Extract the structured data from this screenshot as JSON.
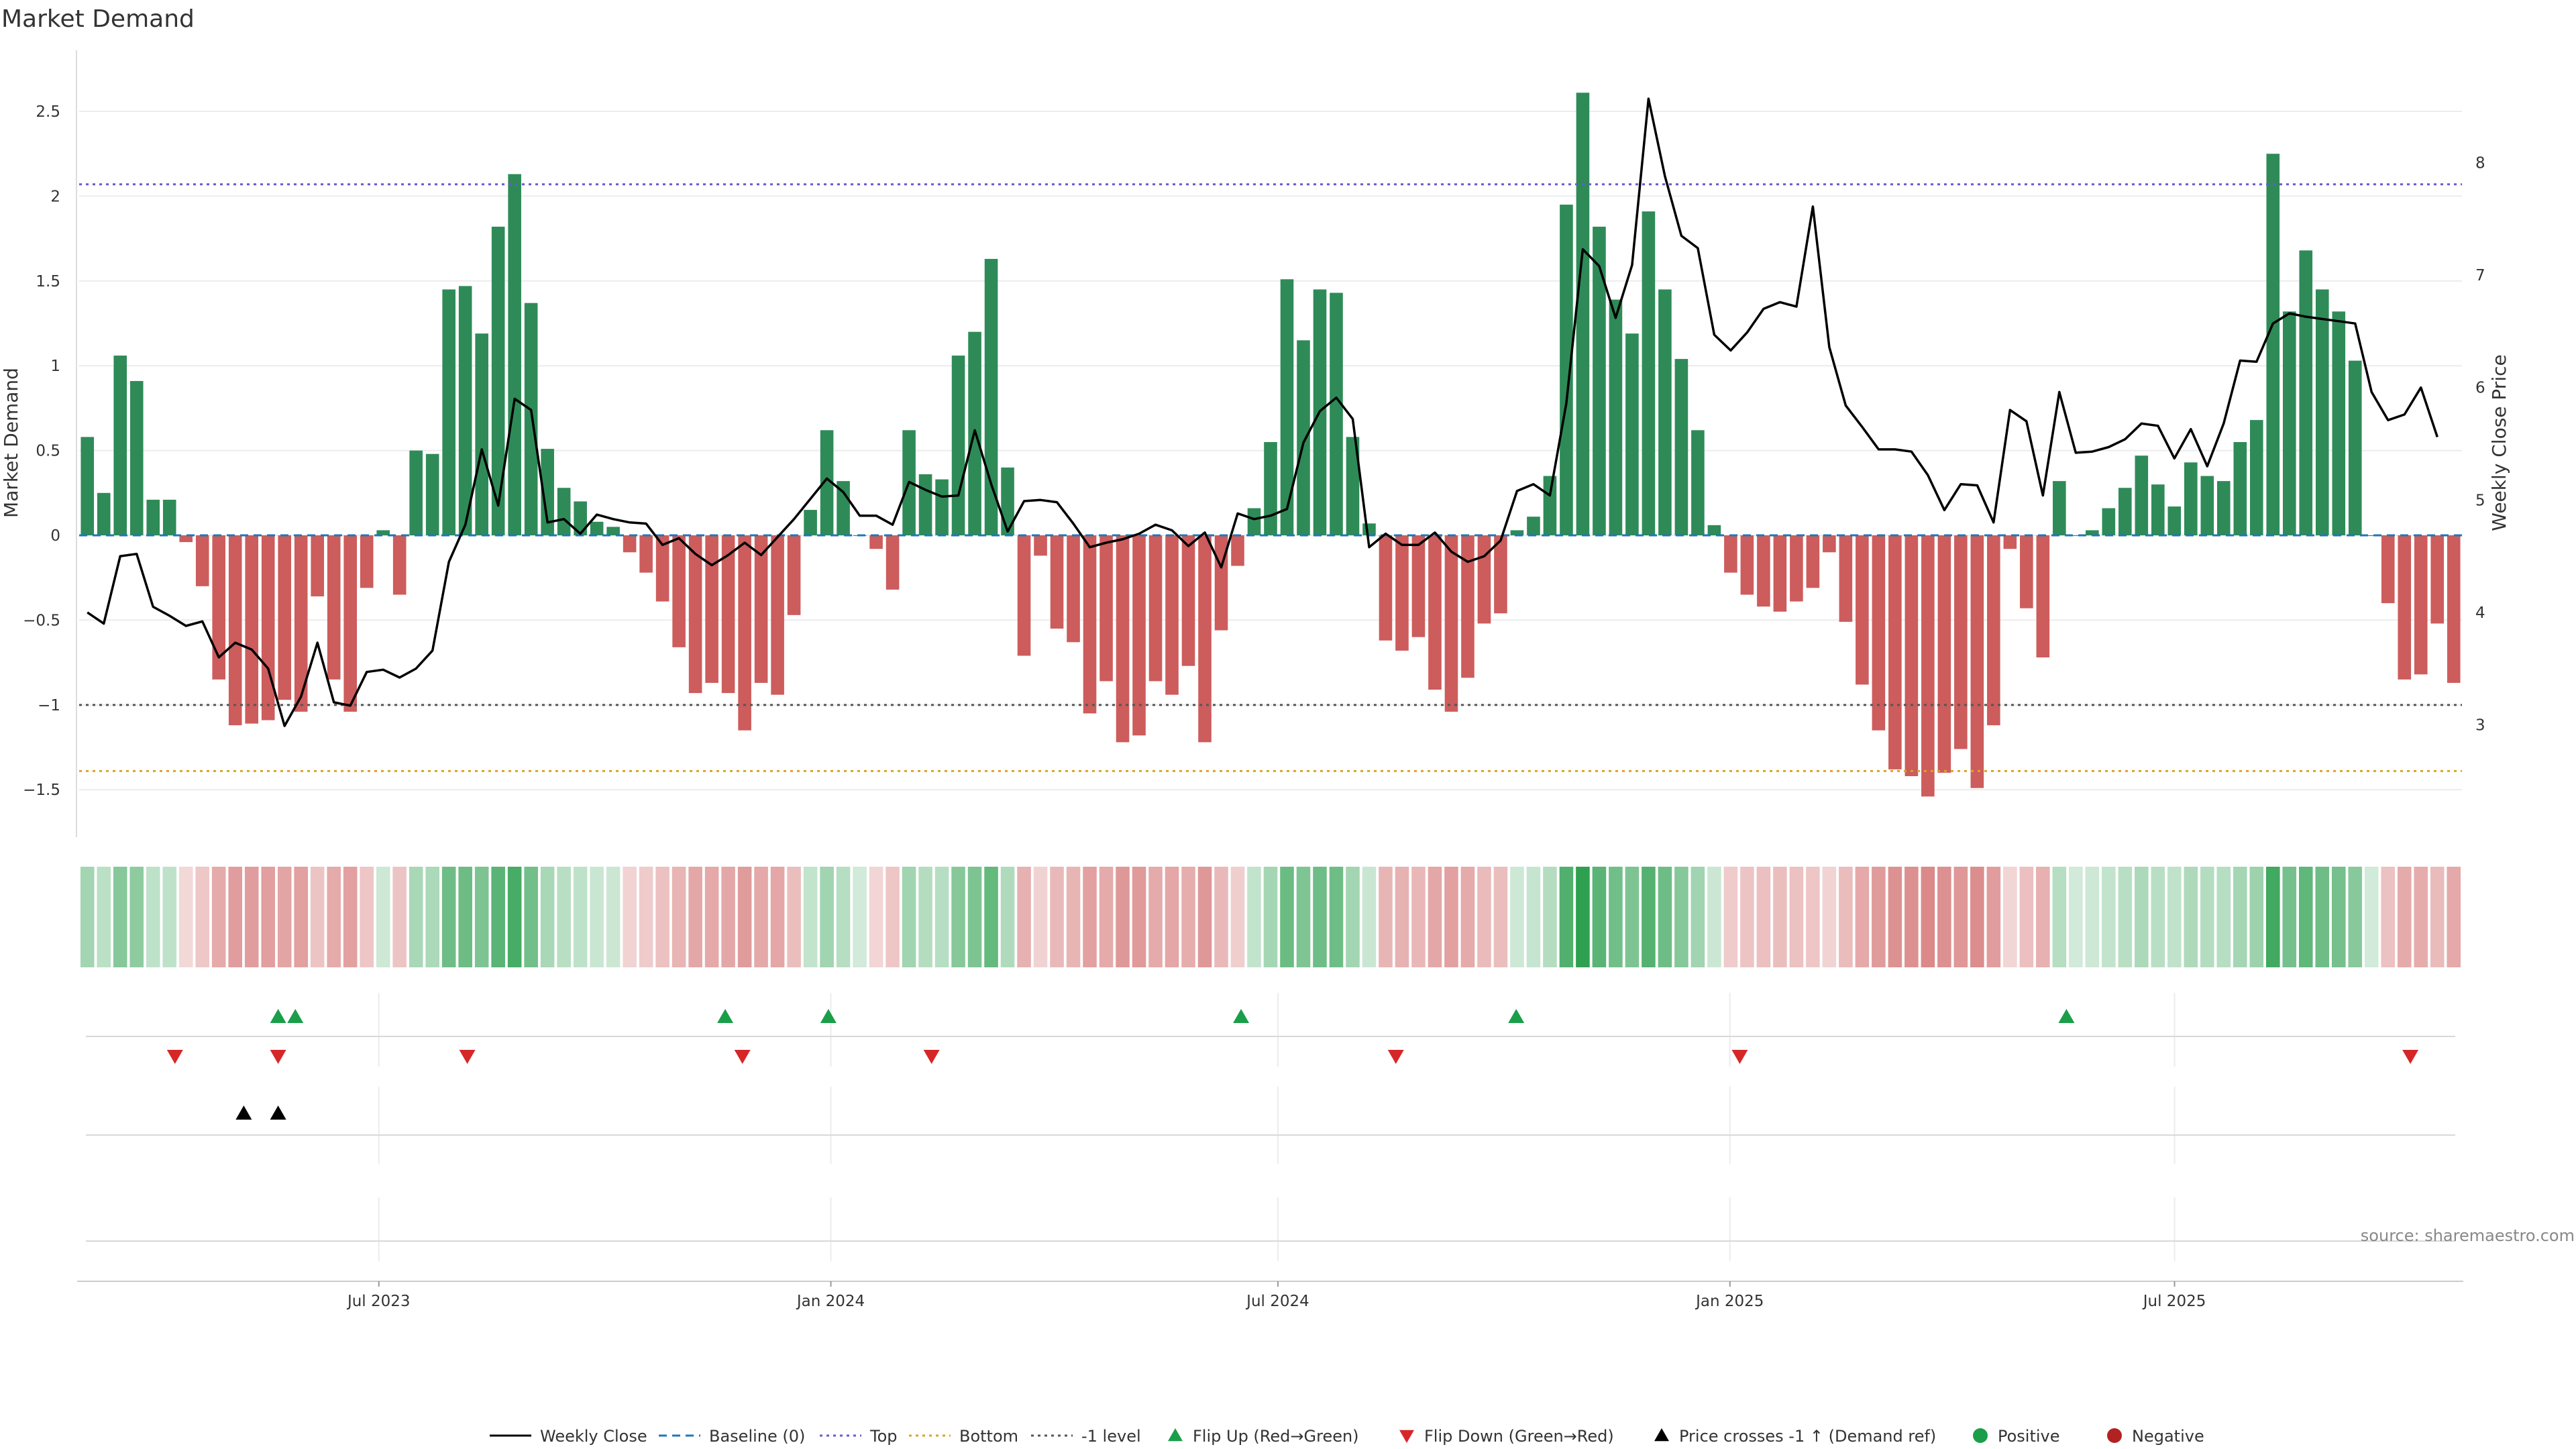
{
  "chart_data": {
    "type": "bar",
    "title": "Market Demand",
    "ylabel": "Market Demand",
    "y2label": "Weekly Close Price",
    "ylim": [
      -1.78,
      2.86
    ],
    "y2lim": [
      2.0,
      9.0
    ],
    "yticks": [
      -1.5,
      -1,
      -0.5,
      0,
      0.5,
      1,
      1.5,
      2,
      2.5
    ],
    "yticklabels": [
      "−1.5",
      "−1",
      "−0.5",
      "0",
      "0.5",
      "1",
      "1.5",
      "2",
      "2.5"
    ],
    "y2ticks": [
      3,
      4,
      5,
      6,
      7,
      8
    ],
    "x_date_range": [
      "2023-03-01",
      "2025-10-26"
    ],
    "xticks": [
      "2023-07-01",
      "2024-01-01",
      "2024-07-01",
      "2025-01-01",
      "2025-07-01"
    ],
    "xticklabels": [
      "Jul 2023",
      "Jan 2024",
      "Jul 2024",
      "Jan 2025",
      "Jul 2025"
    ],
    "reference_lines": {
      "top": 2.07,
      "bottom": -1.39,
      "minus_one": -1,
      "baseline": 0
    },
    "colors": {
      "positive": "#2e8b57",
      "negative": "#cd5c5c",
      "price": "#000000",
      "top": "#6a5acd",
      "bottom": "#daa520",
      "minus_one": "#555555",
      "flip_up": "#1a9e4a",
      "flip_down": "#d62728",
      "cross": "#000000"
    },
    "demand": [
      0.58,
      0.25,
      1.06,
      0.91,
      0.21,
      0.21,
      -0.04,
      -0.3,
      -0.85,
      -1.12,
      -1.11,
      -1.09,
      -0.97,
      -1.04,
      -0.36,
      -0.85,
      -1.04,
      -0.31,
      0.03,
      -0.35,
      0.5,
      0.48,
      1.45,
      1.47,
      1.19,
      1.82,
      2.13,
      1.37,
      0.51,
      0.28,
      0.2,
      0.08,
      0.05,
      -0.1,
      -0.22,
      -0.39,
      -0.66,
      -0.93,
      -0.87,
      -0.93,
      -1.15,
      -0.87,
      -0.94,
      -0.47,
      0.15,
      0.62,
      0.32,
      0.0,
      -0.08,
      -0.32,
      0.62,
      0.36,
      0.33,
      1.06,
      1.2,
      1.63,
      0.4,
      -0.71,
      -0.12,
      -0.55,
      -0.63,
      -1.05,
      -0.86,
      -1.22,
      -1.18,
      -0.86,
      -0.94,
      -0.77,
      -1.22,
      -0.56,
      -0.18,
      0.16,
      0.55,
      1.51,
      1.15,
      1.45,
      1.43,
      0.58,
      0.07,
      -0.62,
      -0.68,
      -0.6,
      -0.91,
      -1.04,
      -0.84,
      -0.52,
      -0.46,
      0.03,
      0.11,
      0.35,
      1.95,
      2.61,
      1.82,
      1.39,
      1.19,
      1.91,
      1.45,
      1.04,
      0.62,
      0.06,
      -0.22,
      -0.35,
      -0.42,
      -0.45,
      -0.39,
      -0.31,
      -0.1,
      -0.51,
      -0.88,
      -1.15,
      -1.38,
      -1.42,
      -1.54,
      -1.4,
      -1.26,
      -1.49,
      -1.12,
      -0.08,
      -0.43,
      -0.72,
      0.32,
      0.0,
      0.03,
      0.16,
      0.28,
      0.47,
      0.3,
      0.17,
      0.43,
      0.35,
      0.32,
      0.55,
      0.68,
      2.25,
      1.32,
      1.68,
      1.45,
      1.32,
      1.03,
      0.0,
      -0.4,
      -0.85,
      -0.82,
      -0.52,
      -0.87
    ],
    "weekly_close": [
      4.0,
      3.9,
      4.5,
      4.52,
      4.05,
      3.97,
      3.88,
      3.92,
      3.6,
      3.73,
      3.67,
      3.5,
      2.99,
      3.25,
      3.73,
      3.2,
      3.17,
      3.47,
      3.49,
      3.42,
      3.5,
      3.66,
      4.45,
      4.78,
      5.45,
      4.95,
      5.9,
      5.8,
      4.8,
      4.83,
      4.7,
      4.87,
      4.83,
      4.8,
      4.79,
      4.6,
      4.66,
      4.52,
      4.42,
      4.51,
      4.62,
      4.51,
      4.67,
      4.83,
      5.01,
      5.19,
      5.07,
      4.86,
      4.86,
      4.78,
      5.16,
      5.09,
      5.03,
      5.04,
      5.62,
      5.14,
      4.72,
      4.99,
      5.0,
      4.98,
      4.79,
      4.58,
      4.62,
      4.65,
      4.7,
      4.78,
      4.73,
      4.59,
      4.71,
      4.4,
      4.88,
      4.83,
      4.86,
      4.92,
      5.51,
      5.79,
      5.91,
      5.72,
      4.58,
      4.7,
      4.6,
      4.6,
      4.71,
      4.54,
      4.45,
      4.5,
      4.64,
      5.08,
      5.14,
      5.04,
      5.86,
      7.23,
      7.08,
      6.62,
      7.09,
      8.57,
      7.88,
      7.35,
      7.24,
      6.47,
      6.33,
      6.49,
      6.7,
      6.76,
      6.72,
      7.61,
      6.36,
      5.84,
      5.65,
      5.45,
      5.45,
      5.43,
      5.22,
      4.91,
      5.14,
      5.13,
      4.8,
      5.8,
      5.7,
      5.04,
      5.96,
      5.42,
      5.43,
      5.47,
      5.54,
      5.68,
      5.66,
      5.37,
      5.63,
      5.3,
      5.68,
      6.24,
      6.23,
      6.57,
      6.66,
      6.63,
      6.61,
      6.59,
      6.57,
      5.96,
      5.71,
      5.76,
      6.0,
      5.56
    ],
    "heat_strip": "market demand heat strip, one cell per week",
    "flip_up": [
      "2023-05-21",
      "2023-05-28",
      "2023-11-19",
      "2023-12-31",
      "2024-06-16",
      "2024-10-06",
      "2025-05-18"
    ],
    "flip_down": [
      "2023-04-09",
      "2023-05-21",
      "2023-08-06",
      "2023-11-26",
      "2024-02-11",
      "2024-08-18",
      "2025-01-05",
      "2025-10-05"
    ],
    "price_crosses_minus1": [
      "2023-05-07",
      "2023-05-21"
    ]
  },
  "legend": [
    {
      "label": "Weekly Close",
      "symbol": "line-solid",
      "color": "#000000"
    },
    {
      "label": "Baseline (0)",
      "symbol": "line-dash",
      "color": "#1f77b4"
    },
    {
      "label": "Top",
      "symbol": "line-dot",
      "color": "#6a5acd"
    },
    {
      "label": "Bottom",
      "symbol": "line-dot",
      "color": "#daa520"
    },
    {
      "label": "-1 level",
      "symbol": "line-dot",
      "color": "#555555"
    },
    {
      "label": "Flip Up (Red→Green)",
      "symbol": "triangle-up",
      "color": "#1a9e4a"
    },
    {
      "label": "Flip Down (Green→Red)",
      "symbol": "triangle-down",
      "color": "#d62728"
    },
    {
      "label": "Price crosses -1 ↑ (Demand ref)",
      "symbol": "triangle-up",
      "color": "#000000"
    },
    {
      "label": "Positive",
      "symbol": "circle",
      "color": "#1a9e4a"
    },
    {
      "label": "Negative",
      "symbol": "circle",
      "color": "#b22222"
    }
  ],
  "source": "source: sharemaestro.com"
}
